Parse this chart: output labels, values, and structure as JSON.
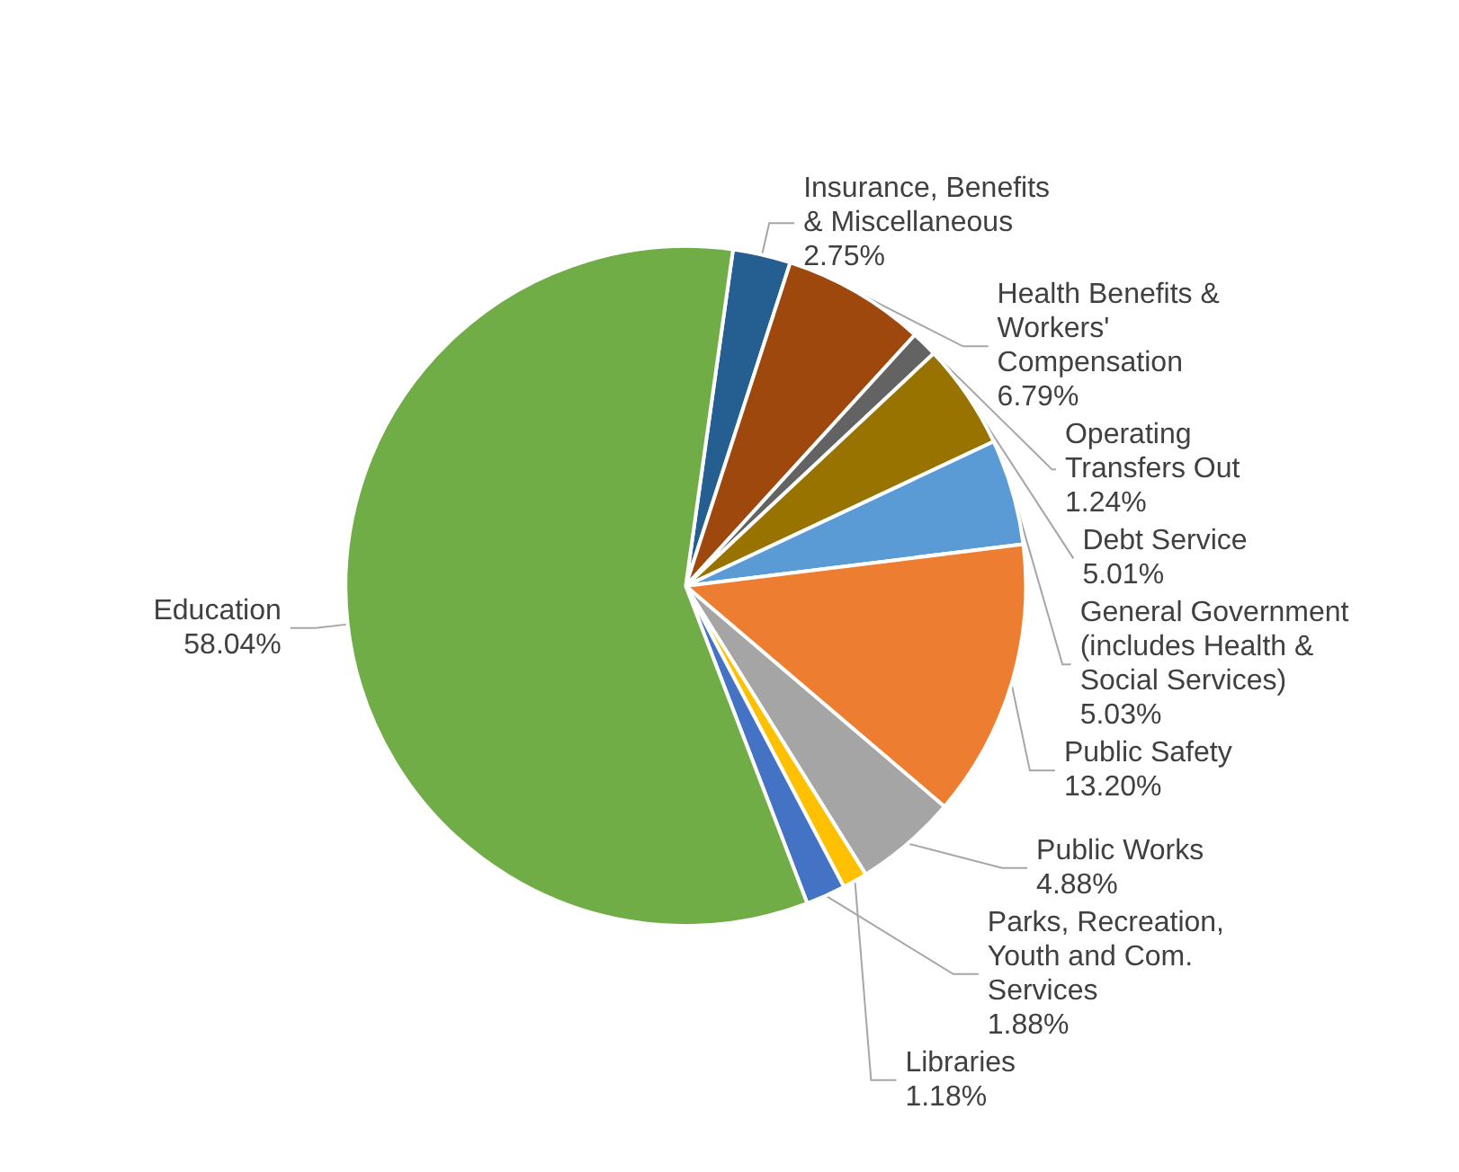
{
  "chart_data": {
    "type": "pie",
    "categories": [
      "Insurance, Benefits & Miscellaneous",
      "Health Benefits & Workers' Compensation",
      "Operating Transfers Out",
      "Debt Service",
      "General Government (includes Health & Social Services)",
      "Public Safety",
      "Public Works",
      "Libraries",
      "Parks, Recreation, Youth and Com. Services",
      "Education"
    ],
    "values": [
      2.75,
      6.79,
      1.24,
      5.01,
      5.03,
      13.2,
      4.88,
      1.18,
      1.88,
      58.04
    ],
    "value_labels": [
      "2.75%",
      "6.79%",
      "1.24%",
      "5.01%",
      "5.03%",
      "13.20%",
      "4.88%",
      "1.18%",
      "1.88%",
      "58.04%"
    ],
    "colors": [
      "#255e91",
      "#9e480e",
      "#636363",
      "#997300",
      "#5b9bd5",
      "#ed7d31",
      "#a5a5a5",
      "#ffc000",
      "#4472c4",
      "#70ad47"
    ],
    "legend": false
  }
}
